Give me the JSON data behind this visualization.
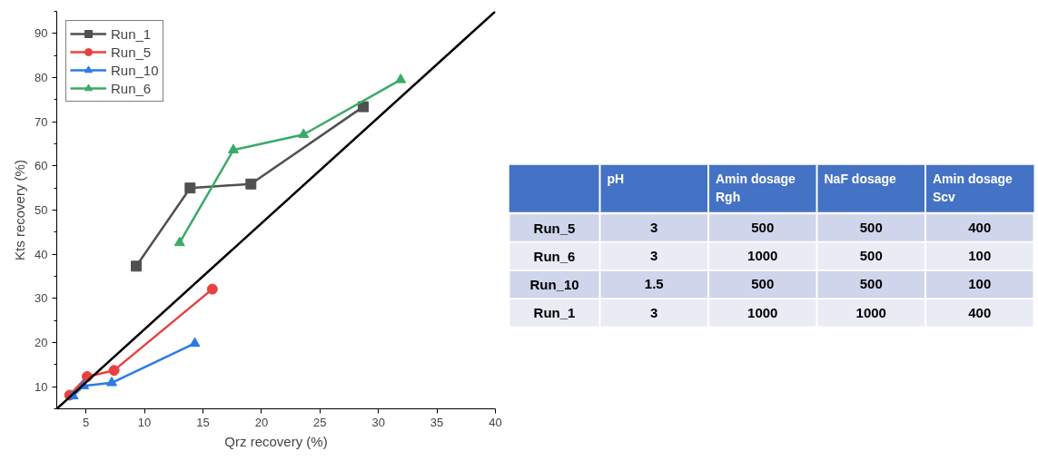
{
  "chart_data": [
    {
      "type": "line",
      "xlabel": "Qrz recovery (%)",
      "ylabel": "Kts recovery (%)",
      "xlim": [
        2.5,
        40
      ],
      "ylim": [
        5,
        95
      ],
      "xticks": [
        5,
        10,
        15,
        20,
        25,
        30,
        35,
        40
      ],
      "yticks": [
        10,
        20,
        30,
        40,
        50,
        60,
        70,
        80,
        90
      ],
      "grid": false,
      "legend": "top left",
      "series": [
        {
          "name": "Run_1",
          "color": "#505050",
          "marker": "square",
          "x": [
            9.3,
            13.9,
            19.1,
            28.7
          ],
          "values": [
            37.3,
            55,
            55.9,
            73.4
          ]
        },
        {
          "name": "Run_5",
          "color": "#e8413f",
          "marker": "circle",
          "x": [
            3.6,
            5.1,
            7.4,
            15.8
          ],
          "values": [
            8.1,
            12.3,
            13.7,
            32.1
          ]
        },
        {
          "name": "Run_10",
          "color": "#2a7be4",
          "marker": "triangle",
          "x": [
            3.9,
            4.8,
            7.2,
            14.3
          ],
          "values": [
            7.9,
            10.2,
            10.9,
            19.8
          ]
        },
        {
          "name": "Run_6",
          "color": "#3aaa67",
          "marker": "triangle",
          "x": [
            13,
            17.6,
            23.6,
            31.9
          ],
          "values": [
            42.6,
            63.6,
            67.1,
            79.5
          ]
        },
        {
          "color": "#000000",
          "marker": "none",
          "x": [
            2.5,
            40
          ],
          "values": [
            5,
            95
          ]
        }
      ]
    },
    {
      "type": "other",
      "categories": [
        "pH",
        "Amin dosage Rgh",
        "NaF dosage",
        "Amin dosage Scv"
      ],
      "y_categories": [
        "Run_5",
        "Run_6",
        "Run_10",
        "Run_1"
      ],
      "cell_labels": [
        [
          "3",
          "500",
          "500",
          "400"
        ],
        [
          "3",
          "1000",
          "500",
          "100"
        ],
        [
          "1.5",
          "500",
          "500",
          "100"
        ],
        [
          "3",
          "1000",
          "1000",
          "400"
        ]
      ]
    }
  ]
}
